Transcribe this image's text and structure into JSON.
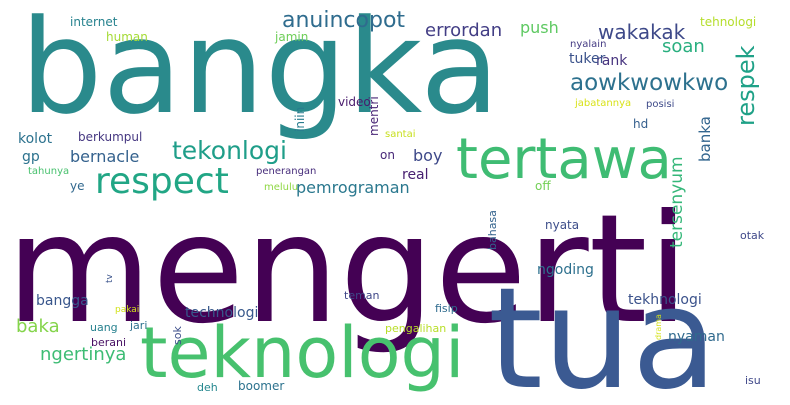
{
  "words": [
    {
      "text": "mengerti",
      "color": "#440154"
    },
    {
      "text": "bangka",
      "color": "#2a8a8c"
    },
    {
      "text": "tua",
      "color": "#3b5a92"
    },
    {
      "text": "teknologi",
      "color": "#47c16e"
    },
    {
      "text": "tertawa",
      "color": "#3fbc73"
    },
    {
      "text": "respect",
      "color": "#21a685"
    },
    {
      "text": "tekonlogi",
      "color": "#1f9e89"
    },
    {
      "text": "anuincopot",
      "color": "#2f6c8e"
    },
    {
      "text": "aowkwowkwo",
      "color": "#2d718e"
    },
    {
      "text": "wakakak",
      "color": "#3e4989"
    },
    {
      "text": "respek",
      "color": "#1fa187"
    },
    {
      "text": "errordan",
      "color": "#433e85"
    },
    {
      "text": "push",
      "color": "#5ec962"
    },
    {
      "text": "soan",
      "color": "#29af7f"
    },
    {
      "text": "rank",
      "color": "#46337e"
    },
    {
      "text": "tuker",
      "color": "#3b528b"
    },
    {
      "text": "nyalain",
      "color": "#443a83"
    },
    {
      "text": "tehnologi",
      "color": "#b5de2b"
    },
    {
      "text": "jabatannya",
      "color": "#d8e219"
    },
    {
      "text": "posisi",
      "color": "#3e4a89"
    },
    {
      "text": "hd",
      "color": "#355f8d"
    },
    {
      "text": "banka",
      "color": "#32658e"
    },
    {
      "text": "tersenyum",
      "color": "#35b779"
    },
    {
      "text": "internet",
      "color": "#26828e"
    },
    {
      "text": "human",
      "color": "#a5db36"
    },
    {
      "text": "jamin",
      "color": "#6ece58"
    },
    {
      "text": "iniin",
      "color": "#287c8e"
    },
    {
      "text": "video",
      "color": "#481a6c"
    },
    {
      "text": "mentri",
      "color": "#482475"
    },
    {
      "text": "santai",
      "color": "#c8e020"
    },
    {
      "text": "on",
      "color": "#482878"
    },
    {
      "text": "kolot",
      "color": "#2c728e"
    },
    {
      "text": "berkumpul",
      "color": "#453781"
    },
    {
      "text": "gp",
      "color": "#2c728e"
    },
    {
      "text": "bernacle",
      "color": "#34618d"
    },
    {
      "text": "boy",
      "color": "#3e4989"
    },
    {
      "text": "tahunya",
      "color": "#48c16e"
    },
    {
      "text": "penerangan",
      "color": "#472d7b"
    },
    {
      "text": "melulu",
      "color": "#8fd744"
    },
    {
      "text": "pemrograman",
      "color": "#2a788e"
    },
    {
      "text": "real",
      "color": "#482071"
    },
    {
      "text": "ye",
      "color": "#31688e"
    },
    {
      "text": "off",
      "color": "#73d056"
    },
    {
      "text": "nyata",
      "color": "#3d4e8a"
    },
    {
      "text": "bahasa",
      "color": "#33638d"
    },
    {
      "text": "otak",
      "color": "#3f4889"
    },
    {
      "text": "ngoding",
      "color": "#2d708e"
    },
    {
      "text": "tv",
      "color": "#3a538b"
    },
    {
      "text": "bangga",
      "color": "#39568c"
    },
    {
      "text": "technologi",
      "color": "#38598c"
    },
    {
      "text": "teman",
      "color": "#3f4788"
    },
    {
      "text": "fisip",
      "color": "#2f6b8e"
    },
    {
      "text": "tekhnologi",
      "color": "#3b528b"
    },
    {
      "text": "baka",
      "color": "#84d44b"
    },
    {
      "text": "pakai",
      "color": "#d2e21b"
    },
    {
      "text": "uang",
      "color": "#26818e"
    },
    {
      "text": "jari",
      "color": "#2d718e"
    },
    {
      "text": "sok",
      "color": "#3d4e8a"
    },
    {
      "text": "pengalihan",
      "color": "#b8de29"
    },
    {
      "text": "drama",
      "color": "#d5e21a"
    },
    {
      "text": "nyaman",
      "color": "#306a8e"
    },
    {
      "text": "ngertinya",
      "color": "#3dbc74"
    },
    {
      "text": "berani",
      "color": "#471063"
    },
    {
      "text": "deh",
      "color": "#24878e"
    },
    {
      "text": "boomer",
      "color": "#2c728e"
    },
    {
      "text": "isu",
      "color": "#3f4889"
    }
  ]
}
